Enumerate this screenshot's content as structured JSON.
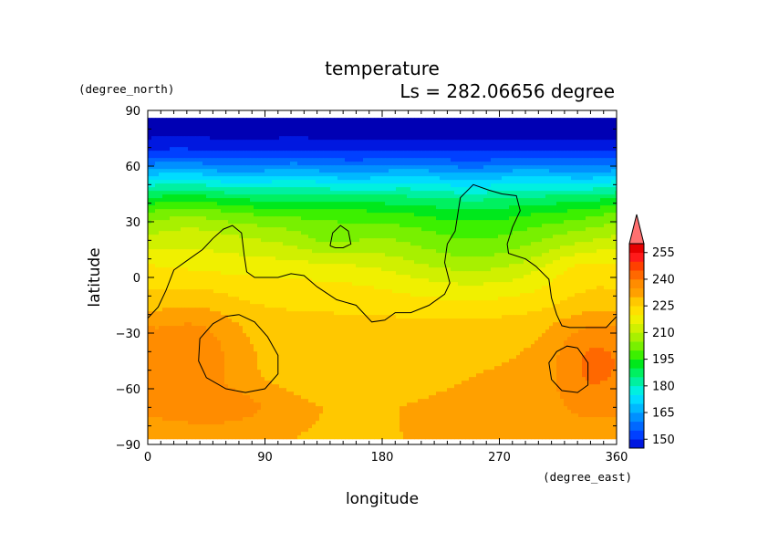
{
  "chart_data": {
    "type": "heatmap",
    "title": "temperature",
    "subtitle": "Ls = 282.06656 degree",
    "xlabel": "longitude",
    "ylabel": "latitude",
    "x_unit": "(degree_east)",
    "y_unit": "(degree_north)",
    "xlim": [
      0,
      360
    ],
    "ylim": [
      -90,
      90
    ],
    "x_ticks": [
      "0",
      "90",
      "180",
      "270",
      "360"
    ],
    "y_ticks": [
      "90",
      "60",
      "30",
      "0",
      "−30",
      "−60",
      "−90"
    ],
    "x_tick_values": [
      0,
      90,
      180,
      270,
      360
    ],
    "y_tick_values": [
      90,
      60,
      30,
      0,
      -30,
      -60,
      -90
    ],
    "data_lat_range": [
      -87,
      86
    ],
    "colorbar": {
      "levels": [
        140,
        145,
        150,
        155,
        160,
        165,
        170,
        175,
        180,
        185,
        190,
        195,
        200,
        205,
        210,
        215,
        220,
        225,
        230,
        235,
        240,
        245,
        250,
        255,
        260,
        265
      ],
      "tick_labels": [
        "150",
        "165",
        "180",
        "195",
        "210",
        "225",
        "240",
        "255"
      ],
      "tick_values": [
        150,
        165,
        180,
        195,
        210,
        225,
        240,
        255
      ],
      "extend": "both",
      "colors": [
        "#0000b4",
        "#0018e0",
        "#0040ff",
        "#0068ff",
        "#0090ff",
        "#00b8ff",
        "#00dcff",
        "#00f0e0",
        "#00f0a0",
        "#00f060",
        "#00e81c",
        "#3cf000",
        "#78f000",
        "#a8f000",
        "#d0f000",
        "#f0f000",
        "#ffe000",
        "#ffc800",
        "#ffa000",
        "#ff8c00",
        "#ff6800",
        "#ff4000",
        "#ff1a1a",
        "#e60000",
        "#ff7070"
      ]
    },
    "zonal_profile": [
      {
        "lat": 86,
        "t": 141
      },
      {
        "lat": 75,
        "t": 145
      },
      {
        "lat": 66,
        "t": 152
      },
      {
        "lat": 58,
        "t": 164
      },
      {
        "lat": 50,
        "t": 177
      },
      {
        "lat": 42,
        "t": 189
      },
      {
        "lat": 34,
        "t": 199
      },
      {
        "lat": 25,
        "t": 207
      },
      {
        "lat": 15,
        "t": 213
      },
      {
        "lat": 5,
        "t": 218
      },
      {
        "lat": -5,
        "t": 222
      },
      {
        "lat": -15,
        "t": 225
      },
      {
        "lat": -25,
        "t": 228
      },
      {
        "lat": -40,
        "t": 230
      },
      {
        "lat": -55,
        "t": 231
      },
      {
        "lat": -70,
        "t": 232
      },
      {
        "lat": -87,
        "t": 231
      }
    ],
    "anomalies": [
      {
        "lon": 250,
        "lat": 15,
        "dlon": 70,
        "dlat": 28,
        "dt": -10
      },
      {
        "lon": 140,
        "lat": 20,
        "dlon": 30,
        "dlat": 10,
        "dt": -5
      },
      {
        "lon": 35,
        "lat": -40,
        "dlon": 35,
        "dlat": 30,
        "dt": 9
      },
      {
        "lon": 60,
        "lat": -70,
        "dlon": 45,
        "dlat": 10,
        "dt": 6
      },
      {
        "lon": 340,
        "lat": -45,
        "dlon": 30,
        "dlat": 28,
        "dt": 10
      },
      {
        "lon": 150,
        "lat": -55,
        "dlon": 90,
        "dlat": 35,
        "dt": -3
      },
      {
        "lon": 30,
        "lat": 35,
        "dlon": 40,
        "dlat": 20,
        "dt": 5
      },
      {
        "lon": 335,
        "lat": 5,
        "dlon": 35,
        "dlat": 12,
        "dt": 5
      }
    ],
    "contours": [
      [
        [
          0,
          -22
        ],
        [
          8,
          -16
        ],
        [
          14,
          -7
        ],
        [
          20,
          4
        ],
        [
          30,
          9
        ],
        [
          42,
          15
        ],
        [
          50,
          21
        ],
        [
          58,
          26
        ],
        [
          65,
          28
        ],
        [
          72,
          24
        ],
        [
          74,
          12
        ],
        [
          76,
          3
        ],
        [
          82,
          0
        ],
        [
          100,
          0
        ],
        [
          110,
          2
        ],
        [
          120,
          1
        ],
        [
          130,
          -5
        ],
        [
          145,
          -12
        ],
        [
          160,
          -15
        ],
        [
          172,
          -24
        ],
        [
          182,
          -23
        ],
        [
          190,
          -19
        ],
        [
          202,
          -19
        ],
        [
          216,
          -15
        ],
        [
          228,
          -9
        ],
        [
          232,
          -3
        ],
        [
          228,
          8
        ],
        [
          230,
          18
        ],
        [
          236,
          25
        ],
        [
          240,
          43
        ],
        [
          250,
          50
        ],
        [
          262,
          47
        ],
        [
          272,
          45
        ],
        [
          283,
          44
        ],
        [
          286,
          36
        ],
        [
          280,
          27
        ],
        [
          276,
          18
        ],
        [
          277,
          13
        ],
        [
          290,
          10
        ],
        [
          298,
          6
        ],
        [
          308,
          -1
        ],
        [
          310,
          -11
        ],
        [
          314,
          -20
        ],
        [
          318,
          -26
        ],
        [
          324,
          -27
        ],
        [
          330,
          -27
        ],
        [
          343,
          -27
        ],
        [
          352,
          -27
        ],
        [
          360,
          -21
        ]
      ],
      [
        [
          70,
          -20
        ],
        [
          82,
          -24
        ],
        [
          92,
          -32
        ],
        [
          100,
          -42
        ],
        [
          100,
          -52
        ],
        [
          90,
          -60
        ],
        [
          75,
          -62
        ],
        [
          60,
          -60
        ],
        [
          45,
          -54
        ],
        [
          39,
          -45
        ],
        [
          40,
          -33
        ],
        [
          50,
          -25
        ],
        [
          60,
          -21
        ],
        [
          70,
          -20
        ]
      ],
      [
        [
          140,
          17
        ],
        [
          142,
          24
        ],
        [
          148,
          28
        ],
        [
          154,
          25
        ],
        [
          156,
          18
        ],
        [
          150,
          16
        ],
        [
          144,
          16
        ],
        [
          140,
          17
        ]
      ],
      [
        [
          330,
          -38
        ],
        [
          338,
          -46
        ],
        [
          338,
          -58
        ],
        [
          330,
          -62
        ],
        [
          318,
          -61
        ],
        [
          310,
          -55
        ],
        [
          308,
          -46
        ],
        [
          314,
          -40
        ],
        [
          322,
          -37
        ],
        [
          330,
          -38
        ]
      ]
    ]
  }
}
